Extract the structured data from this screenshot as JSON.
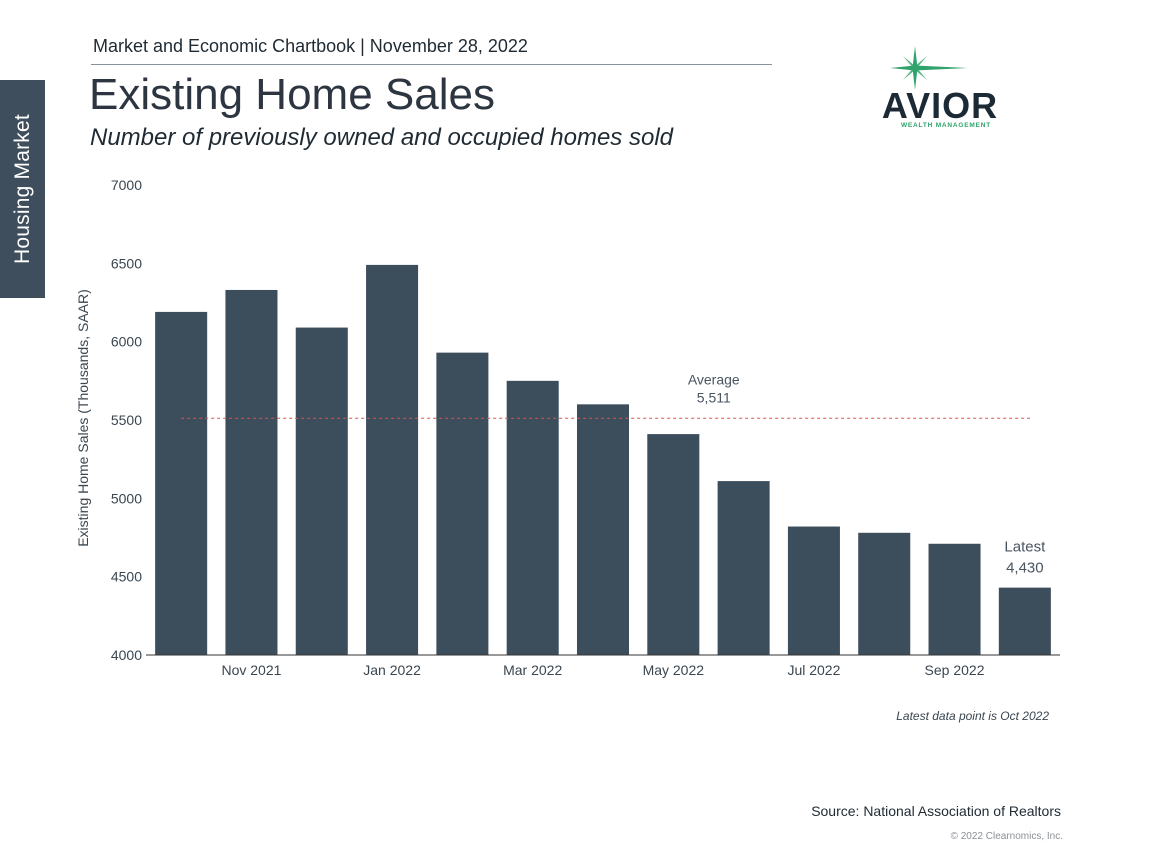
{
  "header": {
    "chartbook": "Market and Economic Chartbook | November 28, 2022",
    "title": "Existing Home Sales",
    "subtitle": "Number of previously owned and occupied homes sold"
  },
  "side_tab": {
    "label": "Housing Market"
  },
  "logo": {
    "name": "AVIOR",
    "tagline": "WEALTH MANAGEMENT",
    "icon": "star-burst-icon",
    "accent": "#2fa36b"
  },
  "colors": {
    "bar": "#3c4d5c",
    "average_line": "#d9534f",
    "axis": "#333333"
  },
  "chart_data": {
    "type": "bar",
    "categories": [
      "Oct 2021",
      "Nov 2021",
      "Dec 2021",
      "Jan 2022",
      "Feb 2022",
      "Mar 2022",
      "Apr 2022",
      "May 2022",
      "Jun 2022",
      "Jul 2022",
      "Aug 2022",
      "Sep 2022",
      "Oct 2022"
    ],
    "x_tick_labels": [
      "",
      "Nov 2021",
      "",
      "Jan 2022",
      "",
      "Mar 2022",
      "",
      "May 2022",
      "",
      "Jul 2022",
      "",
      "Sep 2022",
      ""
    ],
    "values": [
      6190,
      6330,
      6090,
      6490,
      5930,
      5750,
      5600,
      5410,
      5110,
      4820,
      4780,
      4710,
      4430
    ],
    "ylabel": "Existing Home Sales (Thousands, SAAR)",
    "ylim": [
      4000,
      7000
    ],
    "y_ticks": [
      4000,
      4500,
      5000,
      5500,
      6000,
      6500,
      7000
    ],
    "average": {
      "value": 5511,
      "label": "Average",
      "value_label": "5,511"
    },
    "latest": {
      "label": "Latest",
      "value_label": "4,430"
    },
    "grid": false
  },
  "footer": {
    "latest_note": "Latest data point is Oct 2022",
    "source": "Source: National Association of Realtors",
    "copyright": "© 2022 Clearnomics, Inc."
  }
}
